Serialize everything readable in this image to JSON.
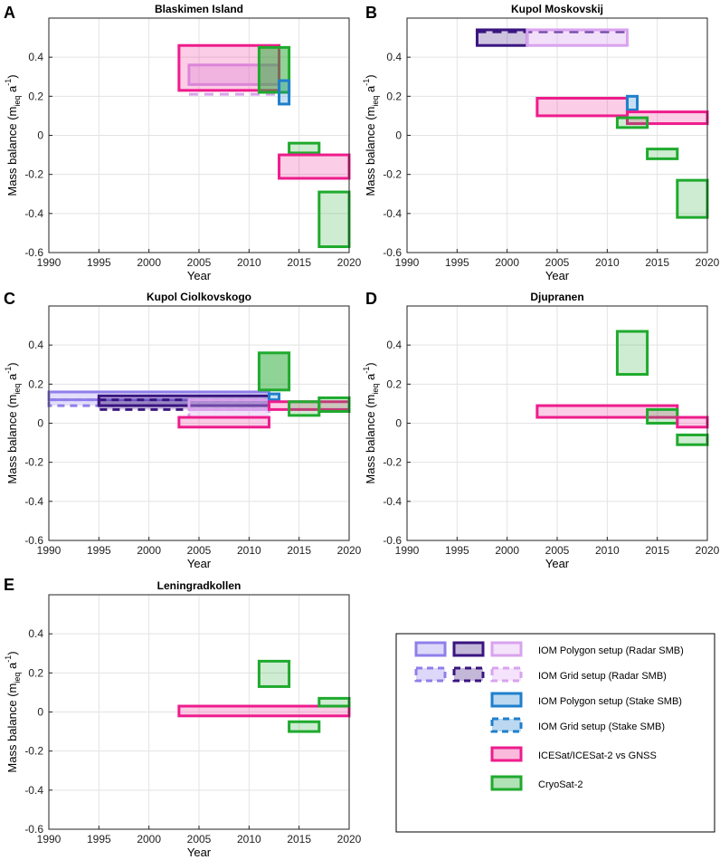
{
  "figure": {
    "ylabel_main": "Mass balance (m",
    "ylabel_sub": "ieq",
    "ylabel_unit": " a",
    "ylabel_sup": "-1",
    "ylabel_close": ")",
    "xlabel": "Year"
  },
  "colors": {
    "radar_polygon_light": "#8F7FEA",
    "radar_polygon_dark": "#3A1580",
    "radar_polygon_pale": "#D9A3EE",
    "stake": "#1F7FCC",
    "icesat": "#EE1C8C",
    "cryosat": "#1FAA2E"
  },
  "legend": {
    "entries": [
      {
        "label": "IOM Polygon setup (Radar SMB)"
      },
      {
        "label": "IOM Grid setup (Radar SMB)"
      },
      {
        "label": "IOM Polygon setup (Stake SMB)"
      },
      {
        "label": "IOM Grid setup (Stake SMB)"
      },
      {
        "label": "ICESat/ICESat-2 vs GNSS"
      },
      {
        "label": "CryoSat-2"
      }
    ]
  },
  "chart_data": [
    {
      "type": "bar",
      "panel": "A",
      "title": "Blaskimen Island",
      "xlabel": "Year",
      "xlim": [
        1990,
        2020
      ],
      "ylim": [
        -0.6,
        0.6
      ],
      "xticks": [
        "1990",
        "1995",
        "2000",
        "2005",
        "2010",
        "2015",
        "2020"
      ],
      "yticks": [
        "0.4",
        "0.2",
        "0",
        "-0.2",
        "-0.4",
        "-0.6"
      ],
      "boxes": [
        {
          "series": "IOM Grid setup (Radar SMB)",
          "x": [
            2004,
            2013
          ],
          "y": [
            0.21,
            0.21
          ],
          "style": "pale-dash-line"
        },
        {
          "series": "IOM Polygon setup (Radar SMB)",
          "x": [
            2004,
            2013
          ],
          "y": [
            0.26,
            0.36
          ],
          "style": "pale"
        },
        {
          "series": "ICESat/ICESat-2 vs GNSS",
          "x": [
            2003,
            2013
          ],
          "y": [
            0.23,
            0.46
          ],
          "style": "icesat"
        },
        {
          "series": "CryoSat-2",
          "x": [
            2011,
            2014
          ],
          "y": [
            0.22,
            0.45
          ],
          "style": "cryosat-dark"
        },
        {
          "series": "IOM Polygon setup (Stake SMB)",
          "x": [
            2013,
            2014
          ],
          "y": [
            0.16,
            0.28
          ],
          "style": "stake"
        },
        {
          "series": "CryoSat-2",
          "x": [
            2014,
            2017
          ],
          "y": [
            -0.09,
            -0.04
          ],
          "style": "cryosat"
        },
        {
          "series": "ICESat/ICESat-2 vs GNSS",
          "x": [
            2013,
            2020
          ],
          "y": [
            -0.22,
            -0.1
          ],
          "style": "icesat"
        },
        {
          "series": "CryoSat-2",
          "x": [
            2017,
            2020
          ],
          "y": [
            -0.57,
            -0.29
          ],
          "style": "cryosat"
        }
      ]
    },
    {
      "type": "bar",
      "panel": "B",
      "title": "Kupol Moskovskij",
      "xlabel": "Year",
      "xlim": [
        1990,
        2020
      ],
      "ylim": [
        -0.6,
        0.6
      ],
      "xticks": [
        "1990",
        "1995",
        "2000",
        "2005",
        "2010",
        "2015",
        "2020"
      ],
      "yticks": [
        "0.4",
        "0.2",
        "0",
        "-0.2",
        "-0.4",
        "-0.6"
      ],
      "boxes": [
        {
          "series": "IOM Polygon setup (Radar SMB)",
          "x": [
            1997,
            2002
          ],
          "y": [
            0.46,
            0.54
          ],
          "style": "dark"
        },
        {
          "series": "IOM Grid setup (Radar SMB)",
          "x": [
            1997,
            2012
          ],
          "y": [
            0.53,
            0.53
          ],
          "style": "dark-dash-line"
        },
        {
          "series": "IOM Polygon setup (Radar SMB)",
          "x": [
            2002,
            2012
          ],
          "y": [
            0.46,
            0.54
          ],
          "style": "pale"
        },
        {
          "series": "ICESat/ICESat-2 vs GNSS",
          "x": [
            2003,
            2012
          ],
          "y": [
            0.1,
            0.19
          ],
          "style": "icesat"
        },
        {
          "series": "IOM Polygon setup (Stake SMB)",
          "x": [
            2012,
            2013
          ],
          "y": [
            0.13,
            0.2
          ],
          "style": "stake"
        },
        {
          "series": "ICESat/ICESat-2 vs GNSS",
          "x": [
            2012,
            2020
          ],
          "y": [
            0.06,
            0.12
          ],
          "style": "icesat"
        },
        {
          "series": "CryoSat-2",
          "x": [
            2011,
            2014
          ],
          "y": [
            0.04,
            0.09
          ],
          "style": "cryosat"
        },
        {
          "series": "CryoSat-2",
          "x": [
            2014,
            2017
          ],
          "y": [
            -0.12,
            -0.07
          ],
          "style": "cryosat"
        },
        {
          "series": "CryoSat-2",
          "x": [
            2017,
            2020
          ],
          "y": [
            -0.42,
            -0.23
          ],
          "style": "cryosat"
        }
      ]
    },
    {
      "type": "bar",
      "panel": "C",
      "title": "Kupol Ciolkovskogo",
      "xlabel": "Year",
      "xlim": [
        1990,
        2020
      ],
      "ylim": [
        -0.6,
        0.6
      ],
      "xticks": [
        "1990",
        "1995",
        "2000",
        "2005",
        "2010",
        "2015",
        "2020"
      ],
      "yticks": [
        "0.4",
        "0.2",
        "0",
        "-0.2",
        "-0.4",
        "-0.6"
      ],
      "boxes": [
        {
          "series": "IOM Polygon setup (Radar SMB)",
          "x": [
            1990,
            2012
          ],
          "y": [
            0.12,
            0.16
          ],
          "style": "light"
        },
        {
          "series": "IOM Grid setup (Radar SMB)",
          "x": [
            1990,
            2012
          ],
          "y": [
            0.09,
            0.12
          ],
          "style": "light-dash"
        },
        {
          "series": "IOM Polygon setup (Radar SMB)",
          "x": [
            1995,
            2012
          ],
          "y": [
            0.09,
            0.14
          ],
          "style": "dark"
        },
        {
          "series": "IOM Grid setup (Radar SMB)",
          "x": [
            1995,
            2012
          ],
          "y": [
            0.07,
            0.12
          ],
          "style": "dark-dash"
        },
        {
          "series": "IOM Polygon setup (Radar SMB)",
          "x": [
            2004,
            2012
          ],
          "y": [
            0.07,
            0.12
          ],
          "style": "pale"
        },
        {
          "series": "IOM Grid setup (Radar SMB)",
          "x": [
            2004,
            2012
          ],
          "y": [
            0.03,
            0.07
          ],
          "style": "pale-dash"
        },
        {
          "series": "IOM Polygon setup (Stake SMB)",
          "x": [
            2012,
            2013
          ],
          "y": [
            0.12,
            0.15
          ],
          "style": "stake"
        },
        {
          "series": "ICESat/ICESat-2 vs GNSS",
          "x": [
            2003,
            2012
          ],
          "y": [
            -0.02,
            0.03
          ],
          "style": "icesat"
        },
        {
          "series": "ICESat/ICESat-2 vs GNSS",
          "x": [
            2012,
            2020
          ],
          "y": [
            0.07,
            0.11
          ],
          "style": "icesat"
        },
        {
          "series": "CryoSat-2",
          "x": [
            2011,
            2014
          ],
          "y": [
            0.17,
            0.36
          ],
          "style": "cryosat-dark"
        },
        {
          "series": "CryoSat-2",
          "x": [
            2014,
            2017
          ],
          "y": [
            0.04,
            0.11
          ],
          "style": "cryosat"
        },
        {
          "series": "CryoSat-2",
          "x": [
            2017,
            2020
          ],
          "y": [
            0.06,
            0.13
          ],
          "style": "cryosat"
        }
      ]
    },
    {
      "type": "bar",
      "panel": "D",
      "title": "Djupranen",
      "xlabel": "Year",
      "xlim": [
        1990,
        2020
      ],
      "ylim": [
        -0.6,
        0.6
      ],
      "xticks": [
        "1990",
        "1995",
        "2000",
        "2005",
        "2010",
        "2015",
        "2020"
      ],
      "yticks": [
        "0.4",
        "0.2",
        "0",
        "-0.2",
        "-0.4",
        "-0.6"
      ],
      "boxes": [
        {
          "series": "CryoSat-2",
          "x": [
            2011,
            2014
          ],
          "y": [
            0.25,
            0.47
          ],
          "style": "cryosat"
        },
        {
          "series": "ICESat/ICESat-2 vs GNSS",
          "x": [
            2003,
            2017
          ],
          "y": [
            0.03,
            0.09
          ],
          "style": "icesat"
        },
        {
          "series": "CryoSat-2",
          "x": [
            2014,
            2017
          ],
          "y": [
            0.0,
            0.07
          ],
          "style": "cryosat"
        },
        {
          "series": "ICESat/ICESat-2 vs GNSS",
          "x": [
            2017,
            2020
          ],
          "y": [
            -0.02,
            0.03
          ],
          "style": "icesat"
        },
        {
          "series": "CryoSat-2",
          "x": [
            2017,
            2020
          ],
          "y": [
            -0.11,
            -0.06
          ],
          "style": "cryosat"
        }
      ]
    },
    {
      "type": "bar",
      "panel": "E",
      "title": "Leningradkollen",
      "xlabel": "Year",
      "xlim": [
        1990,
        2020
      ],
      "ylim": [
        -0.6,
        0.6
      ],
      "xticks": [
        "1990",
        "1995",
        "2000",
        "2005",
        "2010",
        "2015",
        "2020"
      ],
      "yticks": [
        "0.4",
        "0.2",
        "0",
        "-0.2",
        "-0.4",
        "-0.6"
      ],
      "boxes": [
        {
          "series": "CryoSat-2",
          "x": [
            2011,
            2014
          ],
          "y": [
            0.13,
            0.26
          ],
          "style": "cryosat"
        },
        {
          "series": "ICESat/ICESat-2 vs GNSS",
          "x": [
            2003,
            2020
          ],
          "y": [
            -0.02,
            0.03
          ],
          "style": "icesat"
        },
        {
          "series": "CryoSat-2",
          "x": [
            2017,
            2020
          ],
          "y": [
            0.03,
            0.07
          ],
          "style": "cryosat"
        },
        {
          "series": "CryoSat-2",
          "x": [
            2014,
            2017
          ],
          "y": [
            -0.1,
            -0.05
          ],
          "style": "cryosat"
        }
      ]
    }
  ]
}
